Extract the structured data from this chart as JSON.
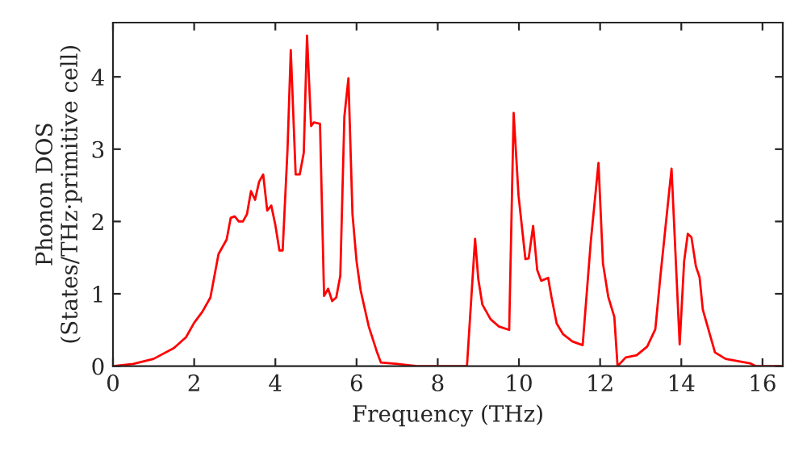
{
  "chart_data": {
    "type": "line",
    "xlabel": "Frequency (THz)",
    "ylabel": "Phonon DOS\n(States/THz·primitive cell)",
    "xlim": [
      0,
      16.5
    ],
    "xticks": [
      0,
      2,
      4,
      6,
      8,
      10,
      12,
      14,
      16
    ],
    "ylim": [
      0,
      4.75
    ],
    "yticks": [
      0,
      1,
      2,
      3,
      4
    ],
    "grid": false,
    "marker": "none",
    "line_style": "solid",
    "series": [
      {
        "color": "#ff0000",
        "x": [
          0,
          0.5,
          1.0,
          1.5,
          1.8,
          2.0,
          2.2,
          2.4,
          2.6,
          2.8,
          2.9,
          3.0,
          3.1,
          3.2,
          3.3,
          3.4,
          3.5,
          3.6,
          3.7,
          3.8,
          3.9,
          4.0,
          4.1,
          4.18,
          4.3,
          4.38,
          4.5,
          4.6,
          4.7,
          4.78,
          4.88,
          4.95,
          5.1,
          5.2,
          5.3,
          5.4,
          5.5,
          5.6,
          5.7,
          5.8,
          5.9,
          6.0,
          6.1,
          6.3,
          6.5,
          6.6,
          7.0,
          7.5,
          8.72,
          8.92,
          9.0,
          9.1,
          9.3,
          9.5,
          9.76,
          9.87,
          9.99,
          10.16,
          10.24,
          10.35,
          10.45,
          10.55,
          10.72,
          10.8,
          10.93,
          11.09,
          11.32,
          11.57,
          11.77,
          11.96,
          12.07,
          12.2,
          12.35,
          12.43,
          12.63,
          12.9,
          13.16,
          13.36,
          13.49,
          13.76,
          13.96,
          14.07,
          14.16,
          14.25,
          14.36,
          14.45,
          14.53,
          14.83,
          15.09,
          15.69,
          15.83,
          16.5
        ],
        "values": [
          0,
          0.03,
          0.1,
          0.25,
          0.4,
          0.6,
          0.75,
          0.95,
          1.55,
          1.75,
          2.05,
          2.07,
          2.0,
          2.0,
          2.1,
          2.42,
          2.3,
          2.55,
          2.65,
          2.15,
          2.22,
          1.95,
          1.6,
          1.6,
          3.0,
          4.37,
          2.65,
          2.65,
          2.95,
          4.57,
          3.32,
          3.37,
          3.35,
          0.97,
          1.07,
          0.9,
          0.95,
          1.25,
          3.45,
          3.98,
          2.1,
          1.45,
          1.05,
          0.55,
          0.2,
          0.05,
          0.03,
          0,
          0,
          1.76,
          1.2,
          0.85,
          0.65,
          0.55,
          0.5,
          3.5,
          2.36,
          1.48,
          1.49,
          1.94,
          1.33,
          1.18,
          1.22,
          0.96,
          0.59,
          0.44,
          0.34,
          0.29,
          1.72,
          2.81,
          1.42,
          0.96,
          0.68,
          0,
          0.12,
          0.15,
          0.27,
          0.51,
          1.27,
          2.73,
          0.3,
          1.45,
          1.83,
          1.78,
          1.38,
          1.23,
          0.78,
          0.19,
          0.1,
          0.04,
          0,
          0
        ]
      }
    ]
  }
}
